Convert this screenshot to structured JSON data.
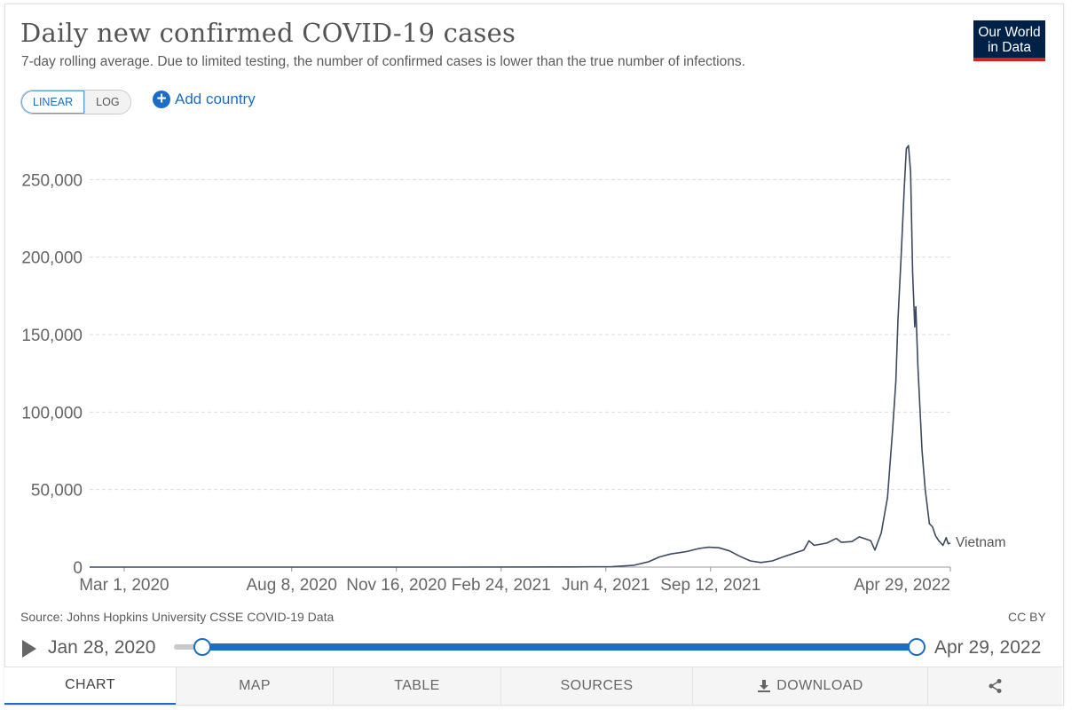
{
  "header": {
    "title": "Daily new confirmed COVID-19 cases",
    "subtitle": "7-day rolling average. Due to limited testing, the number of confirmed cases is lower than the true number of infections.",
    "logo_line1": "Our World",
    "logo_line2": "in Data"
  },
  "controls": {
    "linear_label": "LINEAR",
    "log_label": "LOG",
    "add_country_label": "Add country"
  },
  "chart_data": {
    "type": "line",
    "title": "Daily new confirmed COVID-19 cases",
    "xlabel": "",
    "ylabel": "",
    "ylim": [
      0,
      280000
    ],
    "grid": "horizontal-dashed",
    "y_ticks": [
      0,
      50000,
      100000,
      150000,
      200000,
      250000
    ],
    "y_tick_labels": [
      "0",
      "50,000",
      "100,000",
      "150,000",
      "200,000",
      "250,000"
    ],
    "x_ticks": [
      "2020-03-01",
      "2020-08-08",
      "2020-11-16",
      "2021-02-24",
      "2021-06-04",
      "2021-09-12",
      "2022-04-29"
    ],
    "x_tick_labels": [
      "Mar 1, 2020",
      "Aug 8, 2020",
      "Nov 16, 2020",
      "Feb 24, 2021",
      "Jun 4, 2021",
      "Sep 12, 2021",
      "Apr 29, 2022"
    ],
    "series": [
      {
        "name": "Vietnam",
        "color": "#3c4a5e",
        "points": [
          [
            "2020-01-28",
            0
          ],
          [
            "2020-07-01",
            0
          ],
          [
            "2021-01-01",
            0
          ],
          [
            "2021-05-01",
            100
          ],
          [
            "2021-06-10",
            300
          ],
          [
            "2021-07-01",
            1200
          ],
          [
            "2021-07-15",
            3500
          ],
          [
            "2021-07-25",
            6500
          ],
          [
            "2021-08-05",
            8500
          ],
          [
            "2021-08-20",
            10000
          ],
          [
            "2021-09-01",
            12000
          ],
          [
            "2021-09-10",
            12800
          ],
          [
            "2021-09-20",
            12500
          ],
          [
            "2021-09-30",
            10500
          ],
          [
            "2021-10-10",
            7000
          ],
          [
            "2021-10-20",
            4000
          ],
          [
            "2021-10-30",
            3000
          ],
          [
            "2021-11-10",
            4000
          ],
          [
            "2021-11-20",
            6500
          ],
          [
            "2021-12-01",
            9000
          ],
          [
            "2021-12-10",
            11000
          ],
          [
            "2021-12-15",
            17000
          ],
          [
            "2021-12-20",
            14000
          ],
          [
            "2022-01-01",
            15500
          ],
          [
            "2022-01-10",
            18500
          ],
          [
            "2022-01-15",
            16000
          ],
          [
            "2022-01-25",
            16500
          ],
          [
            "2022-02-01",
            19500
          ],
          [
            "2022-02-08",
            18000
          ],
          [
            "2022-02-12",
            17000
          ],
          [
            "2022-02-16",
            11000
          ],
          [
            "2022-02-22",
            22000
          ],
          [
            "2022-02-28",
            45000
          ],
          [
            "2022-03-05",
            90000
          ],
          [
            "2022-03-08",
            120000
          ],
          [
            "2022-03-10",
            160000
          ],
          [
            "2022-03-13",
            200000
          ],
          [
            "2022-03-16",
            245000
          ],
          [
            "2022-03-18",
            270000
          ],
          [
            "2022-03-20",
            272000
          ],
          [
            "2022-03-22",
            255000
          ],
          [
            "2022-03-24",
            190000
          ],
          [
            "2022-03-26",
            155000
          ],
          [
            "2022-03-27",
            168000
          ],
          [
            "2022-03-29",
            130000
          ],
          [
            "2022-04-02",
            75000
          ],
          [
            "2022-04-05",
            50000
          ],
          [
            "2022-04-09",
            28000
          ],
          [
            "2022-04-12",
            26000
          ],
          [
            "2022-04-15",
            20000
          ],
          [
            "2022-04-18",
            17000
          ],
          [
            "2022-04-22",
            14000
          ],
          [
            "2022-04-25",
            19000
          ],
          [
            "2022-04-27",
            15000
          ],
          [
            "2022-04-29",
            15500
          ]
        ]
      }
    ]
  },
  "footer": {
    "source": "Source: Johns Hopkins University CSSE COVID-19 Data",
    "license": "CC BY"
  },
  "timeline": {
    "start_date": "Jan 28, 2020",
    "end_date": "Apr 29, 2022",
    "range_start_fraction": 0.0,
    "range_end_fraction": 1.0
  },
  "tabs": [
    {
      "label": "CHART"
    },
    {
      "label": "MAP"
    },
    {
      "label": "TABLE"
    },
    {
      "label": "SOURCES"
    },
    {
      "label": "DOWNLOAD"
    },
    {
      "label": ""
    }
  ]
}
